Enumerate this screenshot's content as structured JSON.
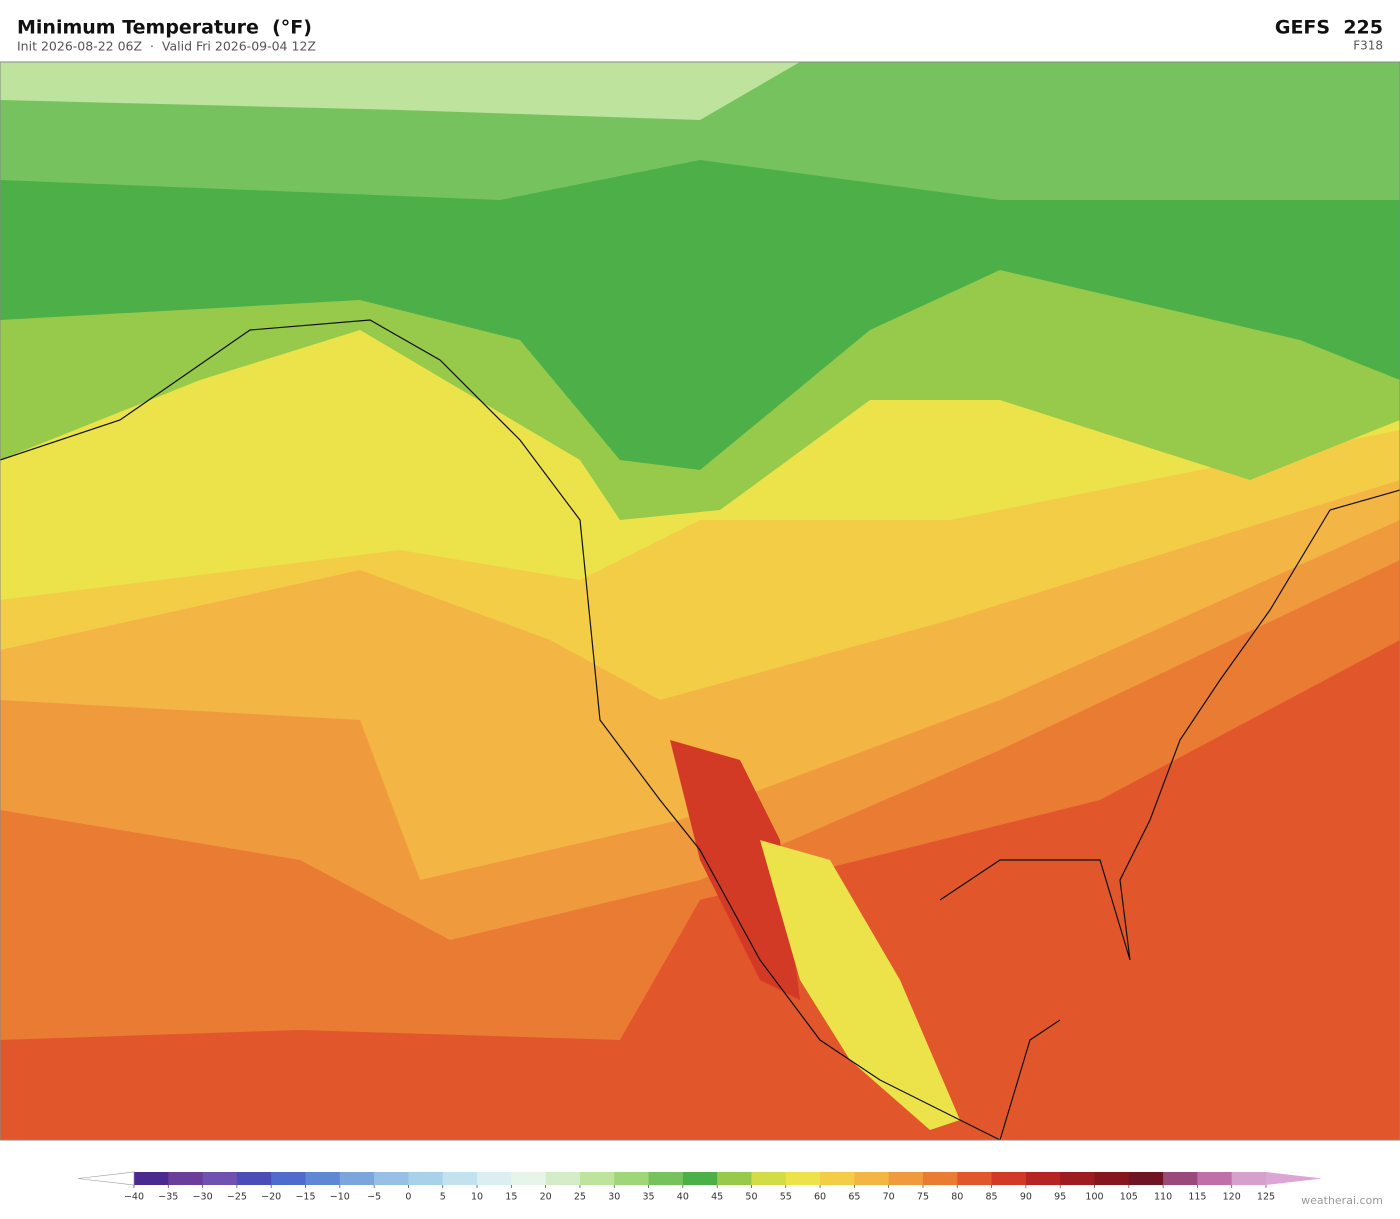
{
  "header": {
    "title": "Minimum Temperature  (°F)",
    "subtitle": "Init 2026-08-22 06Z  ·  Valid Fri 2026-09-04 12Z",
    "model": "GEFS  225",
    "forecast_hour": "F318"
  },
  "colorbar": {
    "ticks": [
      {
        "value": -40,
        "label": "−40"
      },
      {
        "value": -35,
        "label": "−35"
      },
      {
        "value": -30,
        "label": "−30"
      },
      {
        "value": -25,
        "label": "−25"
      },
      {
        "value": -20,
        "label": "−20"
      },
      {
        "value": -15,
        "label": "−15"
      },
      {
        "value": -10,
        "label": "−10"
      },
      {
        "value": -5,
        "label": "−5"
      },
      0,
      5,
      10,
      15,
      20,
      25,
      30,
      35,
      40,
      45,
      50,
      55,
      60,
      65,
      70,
      75,
      80,
      85,
      90,
      95,
      100,
      105,
      110,
      115,
      120,
      125
    ],
    "colors": [
      "#4b2a8f",
      "#6a3d9a",
      "#7050b0",
      "#4a4cb8",
      "#4f6ccc",
      "#5f88d4",
      "#7aa6dc",
      "#97c0e4",
      "#a9d2ea",
      "#c2e2ef",
      "#dbeef2",
      "#e7f4ea",
      "#d4ecc8",
      "#bde39c",
      "#9fd67a",
      "#76c25e",
      "#4caf48",
      "#97c94a",
      "#d2dd45",
      "#ece24a",
      "#f4cd47",
      "#f3b544",
      "#ef9a3d",
      "#ea7b33",
      "#e1562a",
      "#d33a26",
      "#b62424",
      "#9e1c20",
      "#85161d",
      "#6f1420",
      "#9a4a7a",
      "#c070a8",
      "#d6a0cc"
    ],
    "extend_low_color": "#ffffff",
    "extend_high_color": "#dba6d6"
  },
  "footer": {
    "credit": "weatherai.com"
  }
}
